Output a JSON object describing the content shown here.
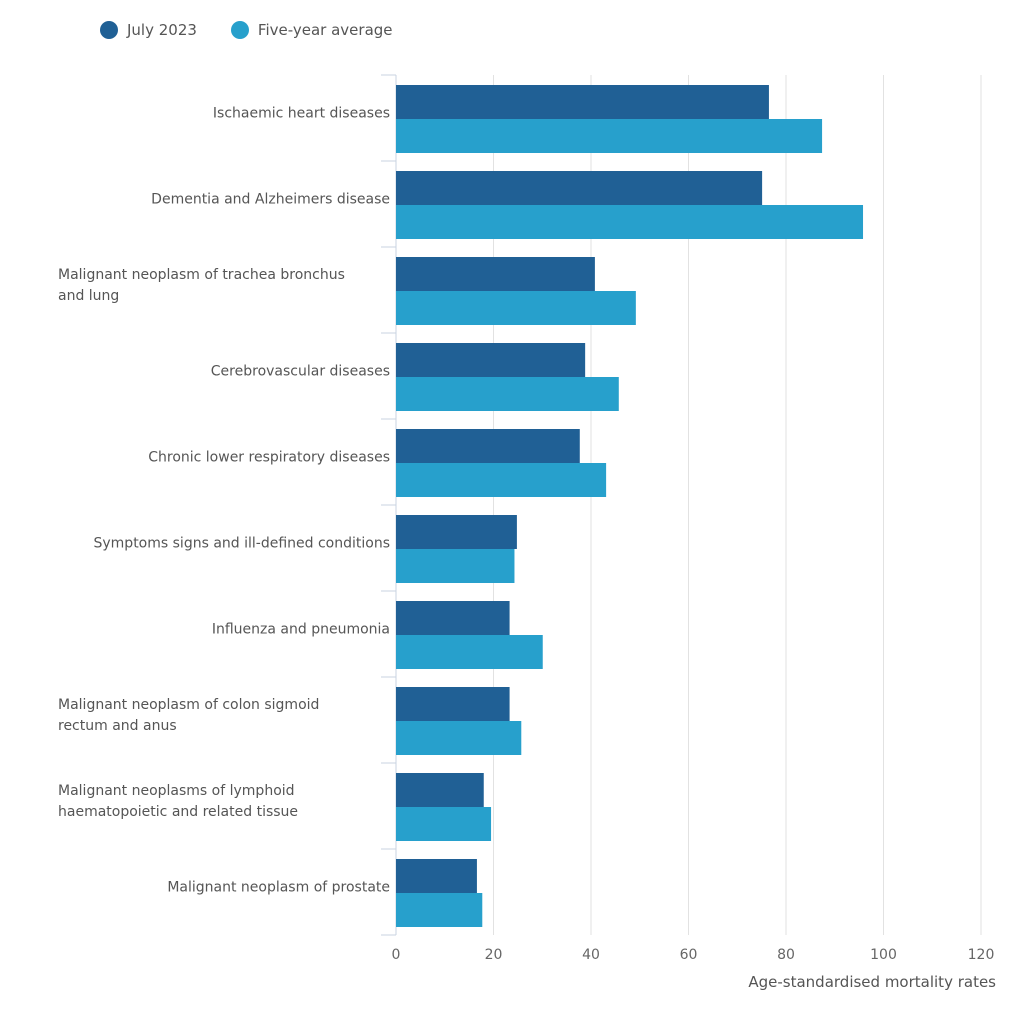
{
  "chart_data": {
    "type": "bar",
    "orientation": "horizontal",
    "title": "",
    "xlabel": "Age-standardised mortality rates",
    "ylabel": "",
    "xlim": [
      0,
      120
    ],
    "xticks": [
      0,
      20,
      40,
      60,
      80,
      100,
      120
    ],
    "grid": true,
    "legend_position": "top-left",
    "categories": [
      "Ischaemic heart diseases",
      "Dementia and Alzheimers disease",
      "Malignant neoplasm of trachea bronchus and lung",
      "Cerebrovascular diseases",
      "Chronic lower respiratory diseases",
      "Symptoms signs and ill-defined conditions",
      "Influenza and pneumonia",
      "Malignant neoplasm of colon sigmoid rectum and anus",
      "Malignant neoplasms of lymphoid haematopoietic and related tissue",
      "Malignant neoplasm of prostate"
    ],
    "series": [
      {
        "name": "July 2023",
        "color": "#206095",
        "values": [
          76.5,
          75.1,
          40.8,
          38.8,
          37.7,
          24.8,
          23.3,
          23.3,
          18.0,
          16.6
        ]
      },
      {
        "name": "Five-year average",
        "color": "#27a0cc",
        "values": [
          87.4,
          95.8,
          49.2,
          45.7,
          43.1,
          24.3,
          30.1,
          25.7,
          19.5,
          17.7
        ]
      }
    ]
  }
}
